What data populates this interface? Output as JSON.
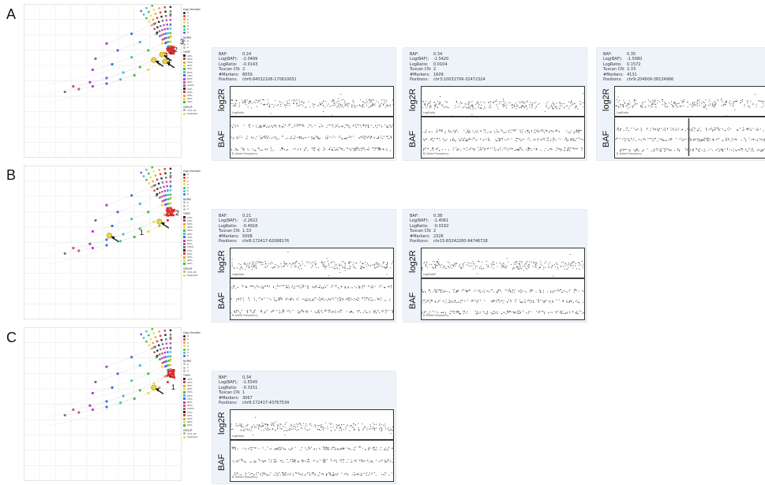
{
  "panels": [
    {
      "letter": "A",
      "arrow_labels": [
        "1",
        "2",
        "3"
      ],
      "cn_plots": [
        {
          "baf": "0.24",
          "log_baf": "-2.0499",
          "log_ratio": "-0.0143",
          "tuscan_cn": "2",
          "markers": "8059",
          "positions": "chr6:64532108-170610051",
          "log2r_level": 0.55,
          "baf_bands": [
            0.5,
            0.22,
            0.78
          ],
          "spike": false
        },
        {
          "baf": "0.34",
          "log_baf": "-1.5420",
          "log_ratio": "0.0104",
          "tuscan_cn": "2",
          "markers": "1609",
          "positions": "chr3:10031799-32472324",
          "log2r_level": 0.6,
          "baf_bands": [
            0.35,
            0.55,
            0.78
          ],
          "spike": false
        },
        {
          "baf": "0.35",
          "log_baf": "-1.5080",
          "log_ratio": "0.1572",
          "tuscan_cn": "2.33",
          "markers": "4131",
          "positions": "chr9:204909-38134966",
          "log2r_level": 0.55,
          "baf_bands": [
            0.3,
            0.55,
            0.8
          ],
          "spike": true
        }
      ]
    },
    {
      "letter": "B",
      "arrow_labels": [
        "1",
        "2"
      ],
      "cn_plots": [
        {
          "baf": "0.21",
          "log_baf": "-2.2622",
          "log_ratio": "-0.4918",
          "tuscan_cn": "1.33",
          "markers": "5008",
          "positions": "chr8:172417-62088176",
          "log2r_level": 0.55,
          "baf_bands": [
            0.2,
            0.5,
            0.8
          ],
          "spike": false
        },
        {
          "baf": "0.38",
          "log_baf": "-1.4061",
          "log_ratio": "-0.0192",
          "tuscan_cn": "2",
          "markers": "2326",
          "positions": "chr15:65242260-94746728",
          "log2r_level": 0.55,
          "baf_bands": [
            0.3,
            0.55,
            0.82
          ],
          "spike": false
        }
      ]
    },
    {
      "letter": "C",
      "arrow_labels": [
        "1"
      ],
      "cn_plots": [
        {
          "baf": "0.34",
          "log_baf": "-1.5545",
          "log_ratio": "-0.3151",
          "tuscan_cn": "1",
          "markers": "3067",
          "positions": "chr8:172417-43767534",
          "log2r_level": 0.55,
          "baf_bands": [
            0.2,
            0.5,
            0.82
          ],
          "spike": false
        }
      ]
    }
  ],
  "labels": {
    "k_baf": "BAF:",
    "k_log_baf": "Log(BAF):",
    "k_log_ratio": "LogRatio:",
    "k_tuscan": "Tuscan CN:",
    "k_markers": "#Markers:",
    "k_positions": "Positions:",
    "log2r": "log2R",
    "baf": "BAF",
    "logratio_tiny": "LogRatio",
    "bafreq_tiny": "B Allele Frequency"
  },
  "legend": {
    "copy_number_title": "Copy Number",
    "copy_numbers": [
      "0",
      "1",
      "2",
      "3",
      "4",
      "5",
      "6"
    ],
    "norm_title": "NORM",
    "norm_items": [
      "0",
      "1",
      "2"
    ],
    "tumc_title": "TUMC",
    "tumc_items": [
      "10%",
      "20%",
      "30%",
      "40%",
      "50%",
      "60%",
      "70%",
      "80%",
      "90%",
      "100%",
      "10%",
      "20%",
      "30%",
      "40%",
      "50%"
    ],
    "group_title": "GROUP",
    "group_items": [
      "chr1-22",
      "Selected"
    ],
    "cn_colors": [
      "#2b2b2b",
      "#e23b3b",
      "#f0a030",
      "#e6df3a",
      "#44bb44",
      "#35c0d8",
      "#3c6fd8",
      "#b040c8",
      "#d84a9c",
      "#777777"
    ]
  },
  "chart_data": {
    "type": "scatter",
    "title": "",
    "xlabel": "",
    "ylabel": "",
    "series": [
      {
        "values": [
          [
            0.5,
            0.0
          ],
          [
            0.49,
            -0.04
          ],
          [
            0.46,
            -0.08
          ],
          [
            0.42,
            -0.12
          ],
          [
            0.37,
            -0.16
          ],
          [
            0.32,
            -0.19
          ],
          [
            0.27,
            -0.22
          ],
          [
            0.22,
            -0.24
          ],
          [
            0.17,
            -0.26
          ],
          [
            0.12,
            -0.28
          ]
        ]
      },
      {
        "values": [
          [
            0.5,
            0.05
          ],
          [
            0.48,
            0.0
          ],
          [
            0.44,
            -0.05
          ],
          [
            0.39,
            -0.1
          ],
          [
            0.33,
            -0.14
          ],
          [
            0.27,
            -0.18
          ],
          [
            0.21,
            -0.21
          ],
          [
            0.15,
            -0.24
          ]
        ]
      },
      {
        "values": [
          [
            0.5,
            0.12
          ],
          [
            0.47,
            0.07
          ],
          [
            0.42,
            0.02
          ],
          [
            0.36,
            -0.03
          ],
          [
            0.29,
            -0.08
          ],
          [
            0.22,
            -0.12
          ]
        ]
      },
      {
        "values": [
          [
            0.5,
            0.2
          ],
          [
            0.45,
            0.14
          ],
          [
            0.39,
            0.08
          ],
          [
            0.31,
            0.02
          ],
          [
            0.23,
            -0.04
          ]
        ]
      },
      {
        "values": [
          [
            0.5,
            0.28
          ],
          [
            0.44,
            0.21
          ],
          [
            0.36,
            0.14
          ],
          [
            0.27,
            0.07
          ]
        ]
      }
    ]
  }
}
